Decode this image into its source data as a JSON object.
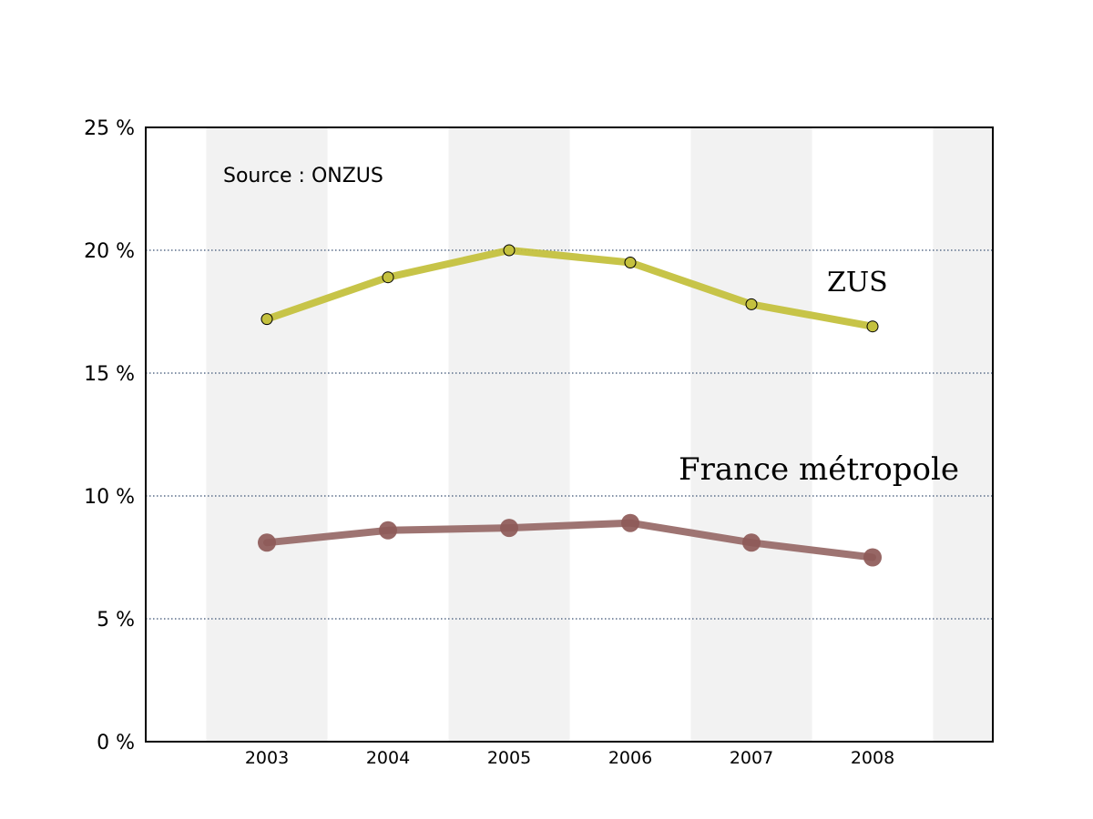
{
  "chart_data": {
    "type": "line",
    "x": [
      "2003",
      "2004",
      "2005",
      "2006",
      "2007",
      "2008"
    ],
    "ylim": [
      0,
      25
    ],
    "yticks": [
      {
        "value": 0,
        "label": "0 %"
      },
      {
        "value": 5,
        "label": "5 %"
      },
      {
        "value": 10,
        "label": "10 %"
      },
      {
        "value": 15,
        "label": "15 %"
      },
      {
        "value": 20,
        "label": "20 %"
      },
      {
        "value": 25,
        "label": "25 %"
      }
    ],
    "gridlines": [
      5,
      10,
      15,
      20
    ],
    "grid": "horizontal dotted",
    "alternating_bands": true,
    "annotation": "Source : ONZUS",
    "series": [
      {
        "name": "ZUS",
        "values": [
          17.2,
          18.9,
          20.0,
          19.5,
          17.8,
          16.9
        ],
        "color": "#c4c13e"
      },
      {
        "name": "France métropole",
        "values": [
          8.1,
          8.6,
          8.7,
          8.9,
          8.1,
          7.5
        ],
        "color": "#9e7472"
      }
    ]
  },
  "colors": {
    "band": "#f2f2f2",
    "grid": "#5a6e8a",
    "zus_line": "#c4c13e",
    "france_line": "#9e7472",
    "france_marker": "#8e5a58"
  }
}
